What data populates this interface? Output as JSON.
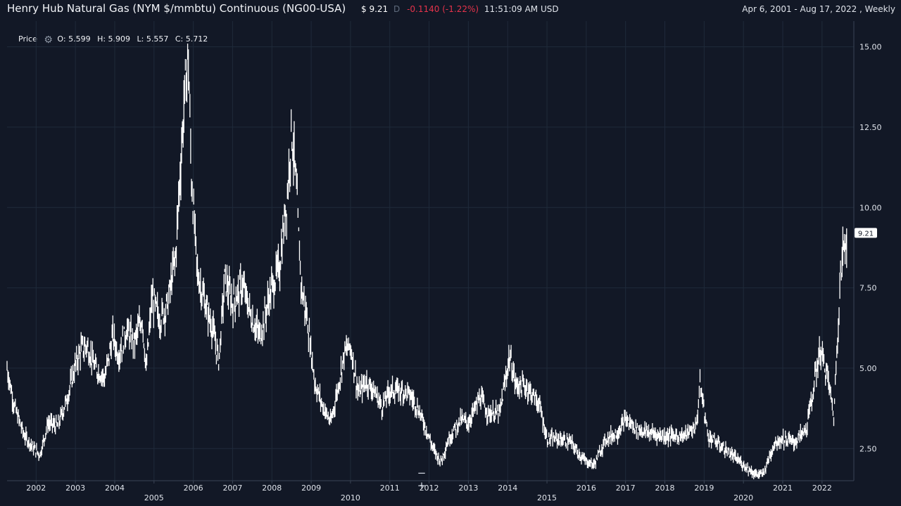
{
  "header": {
    "title": "Henry Hub Natural Gas (NYM $/mmbtu) Continuous (NG00-USA)",
    "price": "$ 9.21",
    "period_code": "D",
    "change": "-0.1140",
    "change_pct": "(-1.22%)",
    "time": "11:51:09 AM USD",
    "date_range": "Apr 6, 2001 - Aug 17, 2022 , Weekly"
  },
  "legend": {
    "label": "Price",
    "icon": "gear-icon",
    "open": "O: 5.599",
    "high": "H: 5.909",
    "low": "L: 5.557",
    "close": "C: 5.712"
  },
  "zoom": {
    "minus": "−",
    "plus": "+"
  },
  "colors": {
    "background": "#121826",
    "bars": "#ffffff",
    "grid": "#1f2a3a",
    "negative": "#e5334b"
  },
  "chart_data": {
    "type": "line",
    "series": [
      {
        "x": [
          2001.26,
          2001.45,
          2001.7,
          2001.95,
          2002.1,
          2002.3,
          2002.55,
          2002.8,
          2003.0,
          2003.15,
          2003.3,
          2003.5,
          2003.75,
          2003.95,
          2004.1,
          2004.3,
          2004.5,
          2004.7,
          2004.8,
          2004.95,
          2005.15,
          2005.35,
          2005.55,
          2005.67,
          2005.78,
          2005.87,
          2005.95,
          2006.1,
          2006.3,
          2006.5,
          2006.65,
          2006.8,
          2007.0,
          2007.25,
          2007.5,
          2007.7,
          2007.95,
          2008.2,
          2008.4,
          2008.5,
          2008.6,
          2008.75,
          2008.9,
          2009.1,
          2009.3,
          2009.5,
          2009.7,
          2009.85,
          2010.0,
          2010.2,
          2010.4,
          2010.6,
          2010.8,
          2011.0,
          2011.3,
          2011.5,
          2011.7,
          2011.9,
          2012.1,
          2012.3,
          2012.5,
          2012.8,
          2013.0,
          2013.3,
          2013.5,
          2013.8,
          2014.05,
          2014.2,
          2014.5,
          2014.8,
          2015.0,
          2015.3,
          2015.6,
          2015.9,
          2016.0,
          2016.2,
          2016.5,
          2016.8,
          2017.0,
          2017.3,
          2017.6,
          2017.9,
          2018.2,
          2018.5,
          2018.8,
          2018.9,
          2019.1,
          2019.4,
          2019.7,
          2020.0,
          2020.3,
          2020.5,
          2020.8,
          2021.0,
          2021.3,
          2021.6,
          2021.8,
          2021.95,
          2022.15,
          2022.3,
          2022.45,
          2022.55,
          2022.63
        ],
        "values": [
          5.0,
          3.8,
          2.9,
          2.5,
          2.3,
          3.3,
          3.2,
          4.1,
          5.1,
          5.6,
          5.7,
          5.0,
          4.7,
          6.0,
          5.4,
          6.2,
          5.8,
          6.6,
          4.9,
          7.2,
          6.5,
          7.0,
          8.5,
          11.2,
          13.5,
          14.8,
          11.0,
          8.0,
          7.0,
          6.2,
          5.2,
          7.8,
          7.0,
          7.6,
          6.5,
          6.0,
          7.3,
          8.2,
          10.5,
          12.5,
          11.0,
          7.5,
          6.5,
          4.5,
          3.8,
          3.3,
          4.5,
          5.5,
          5.7,
          4.2,
          4.6,
          4.3,
          3.8,
          4.3,
          4.3,
          4.2,
          3.8,
          3.2,
          2.5,
          2.1,
          2.8,
          3.4,
          3.3,
          4.1,
          3.6,
          3.6,
          5.4,
          4.5,
          4.4,
          3.9,
          2.8,
          2.8,
          2.7,
          2.2,
          2.1,
          2.0,
          2.8,
          3.0,
          3.4,
          3.1,
          3.0,
          2.9,
          2.9,
          2.9,
          3.2,
          4.5,
          2.9,
          2.6,
          2.3,
          2.0,
          1.7,
          1.7,
          2.7,
          2.8,
          2.7,
          3.1,
          4.5,
          5.6,
          4.7,
          3.5,
          7.5,
          8.8,
          9.2
        ]
      }
    ],
    "ylim": [
      1.5,
      15.8
    ],
    "y_ticks": [
      "2.50",
      "5.00",
      "7.50",
      "10.00",
      "12.50",
      "15.00"
    ],
    "x_ticks": [
      "2002",
      "2003",
      "2004",
      "2005",
      "2006",
      "2007",
      "2008",
      "2009",
      "2010",
      "2011",
      "2012",
      "2013",
      "2014",
      "2015",
      "2016",
      "2017",
      "2018",
      "2019",
      "2020",
      "2021",
      "2022"
    ],
    "last_value_label": "9.21",
    "grid": true
  }
}
